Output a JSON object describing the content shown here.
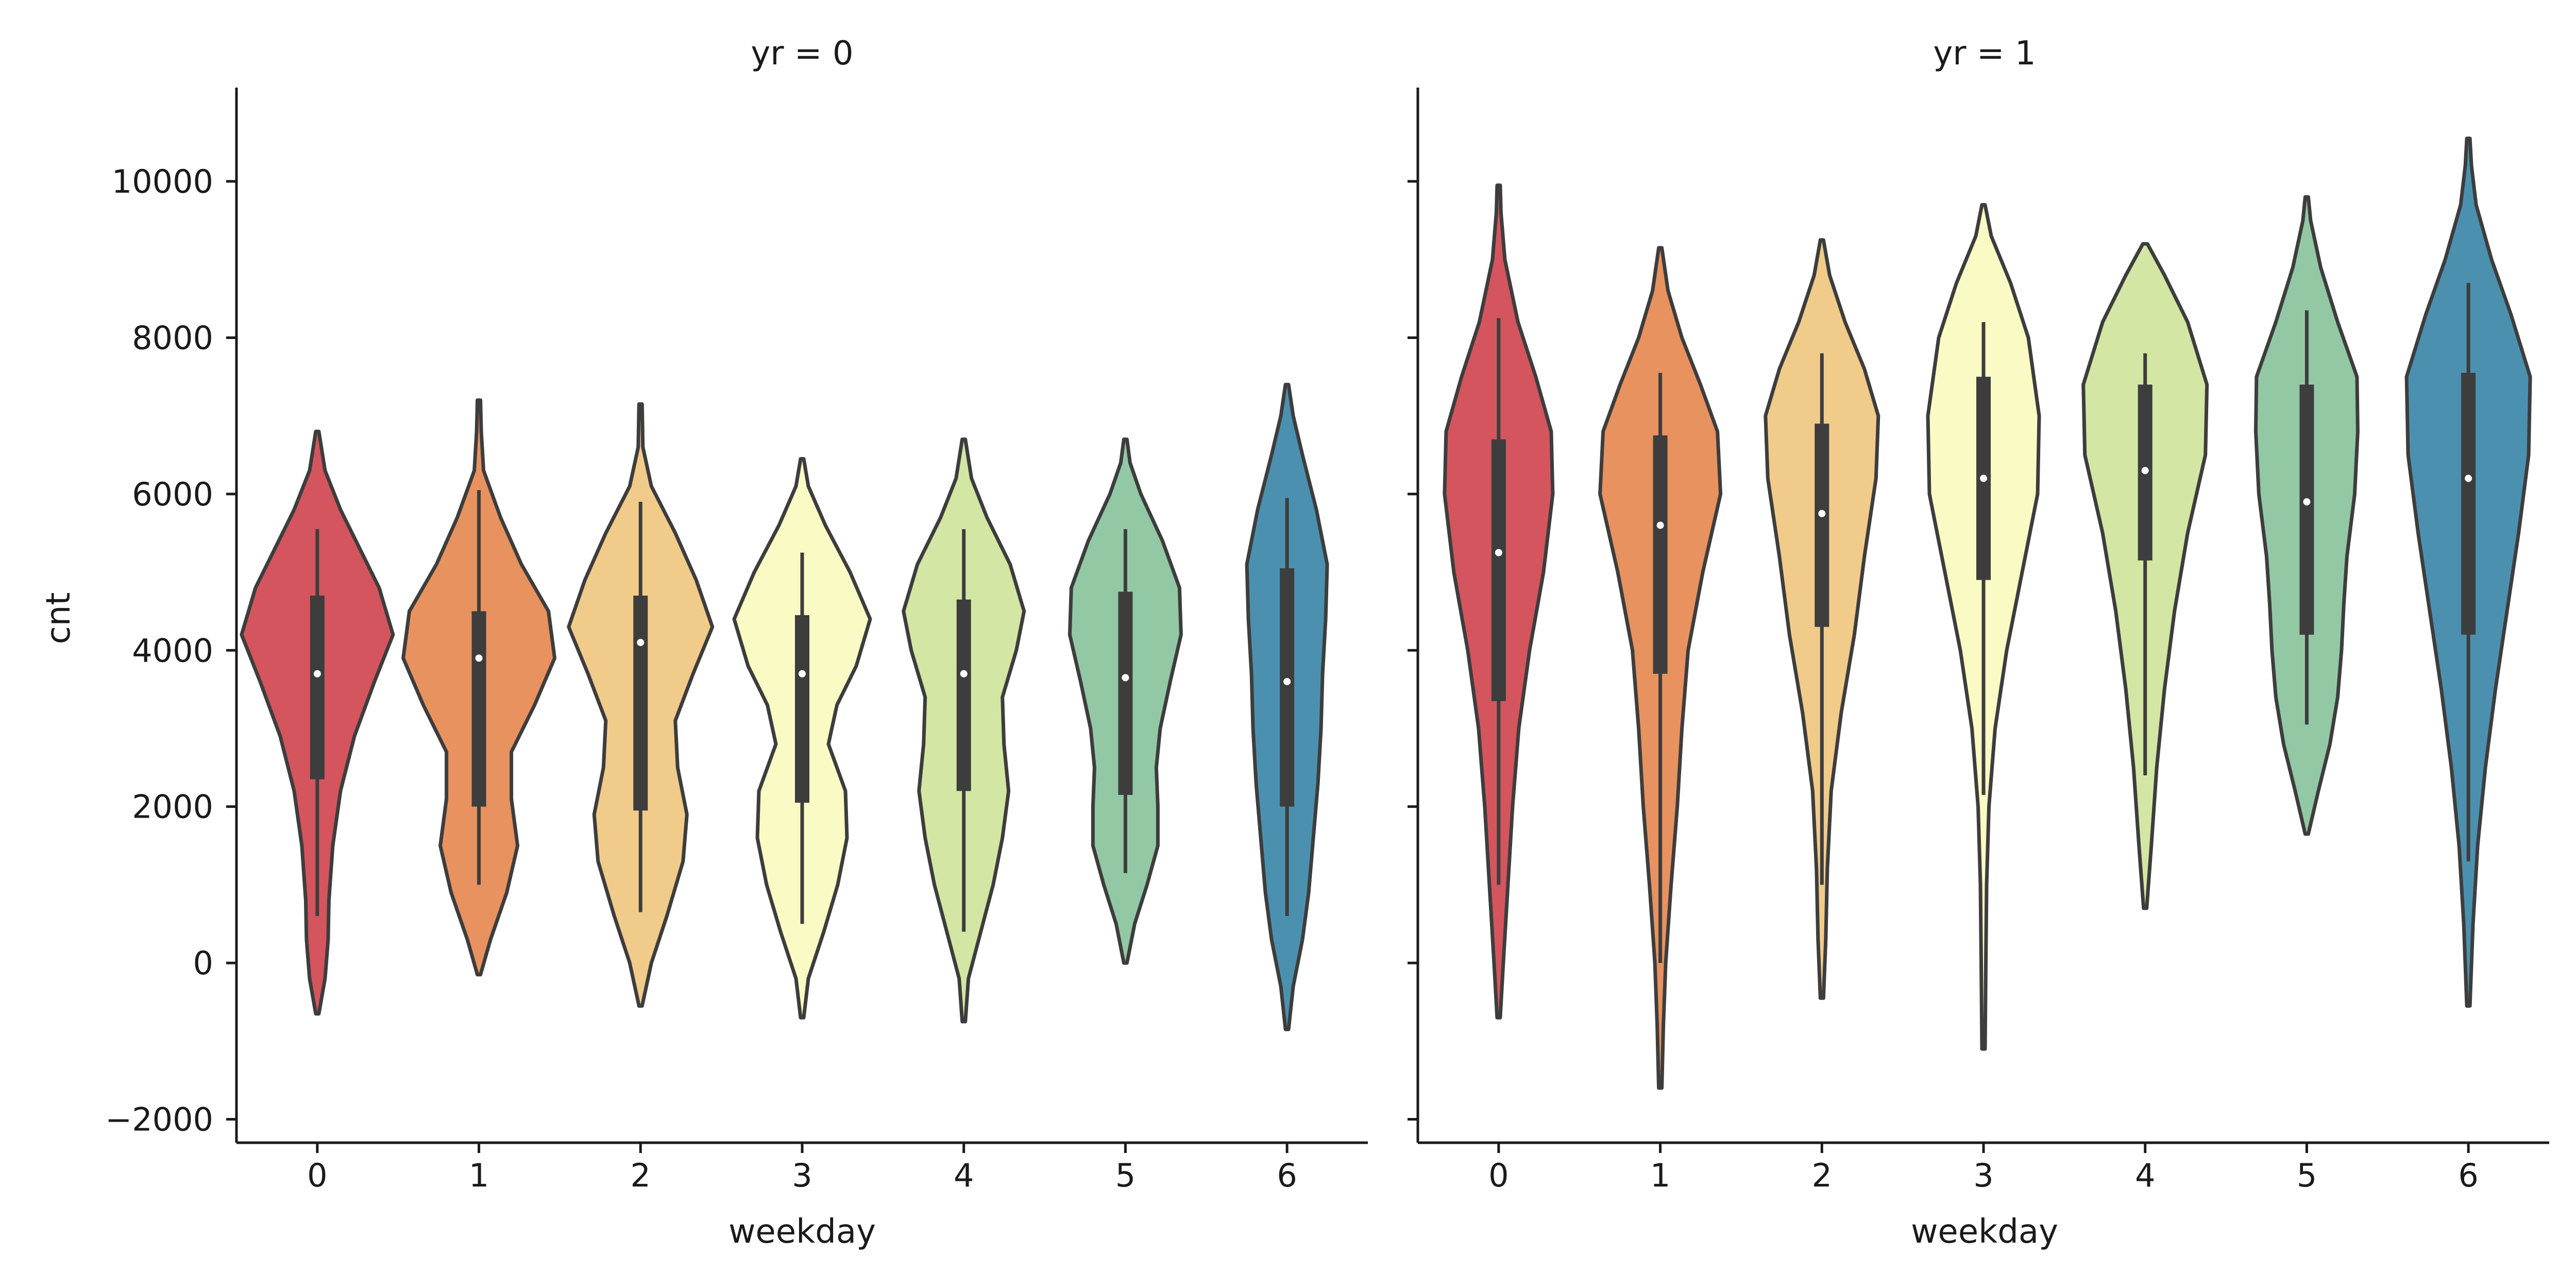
{
  "chart_data": {
    "type": "violin",
    "ylabel": "cnt",
    "ylim": [
      -2300,
      11200
    ],
    "yticks": [
      -2000,
      0,
      2000,
      4000,
      6000,
      8000,
      10000
    ],
    "ytick_labels": [
      "−2000",
      "0",
      "2000",
      "4000",
      "6000",
      "8000",
      "10000"
    ],
    "palette": [
      "#d4555d",
      "#e8925f",
      "#f1cb8a",
      "#fafac4",
      "#d3e6a3",
      "#93c8a5",
      "#4b91af"
    ],
    "panels": [
      {
        "title": "yr = 0",
        "xlabel": "weekday",
        "categories": [
          "0",
          "1",
          "2",
          "3",
          "4",
          "5",
          "6"
        ],
        "violins": [
          {
            "category": "0",
            "median": 3700,
            "q1": 2350,
            "q3": 4700,
            "whisker_low": 600,
            "whisker_high": 5550,
            "min": -650,
            "max": 6800,
            "density": [
              [
                -650,
                0.02
              ],
              [
                -200,
                0.1
              ],
              [
                300,
                0.14
              ],
              [
                800,
                0.15
              ],
              [
                1500,
                0.2
              ],
              [
                2200,
                0.3
              ],
              [
                2900,
                0.48
              ],
              [
                3600,
                0.74
              ],
              [
                4200,
                0.98
              ],
              [
                4800,
                0.8
              ],
              [
                5300,
                0.55
              ],
              [
                5800,
                0.3
              ],
              [
                6300,
                0.1
              ],
              [
                6800,
                0.02
              ]
            ]
          },
          {
            "category": "1",
            "median": 3900,
            "q1": 2000,
            "q3": 4500,
            "whisker_low": 1000,
            "whisker_high": 6050,
            "min": -150,
            "max": 7200,
            "density": [
              [
                -150,
                0.02
              ],
              [
                300,
                0.15
              ],
              [
                900,
                0.36
              ],
              [
                1500,
                0.5
              ],
              [
                2100,
                0.42
              ],
              [
                2700,
                0.42
              ],
              [
                3300,
                0.72
              ],
              [
                3900,
                0.98
              ],
              [
                4500,
                0.9
              ],
              [
                5100,
                0.55
              ],
              [
                5700,
                0.28
              ],
              [
                6300,
                0.06
              ],
              [
                6800,
                0.03
              ],
              [
                7200,
                0.02
              ]
            ]
          },
          {
            "category": "2",
            "median": 4100,
            "q1": 1950,
            "q3": 4700,
            "whisker_low": 650,
            "whisker_high": 5900,
            "min": -550,
            "max": 7150,
            "density": [
              [
                -550,
                0.02
              ],
              [
                0,
                0.14
              ],
              [
                600,
                0.34
              ],
              [
                1300,
                0.55
              ],
              [
                1900,
                0.6
              ],
              [
                2500,
                0.48
              ],
              [
                3100,
                0.45
              ],
              [
                3700,
                0.68
              ],
              [
                4300,
                0.93
              ],
              [
                4900,
                0.72
              ],
              [
                5500,
                0.45
              ],
              [
                6100,
                0.14
              ],
              [
                6600,
                0.03
              ],
              [
                7150,
                0.02
              ]
            ]
          },
          {
            "category": "3",
            "median": 3700,
            "q1": 2050,
            "q3": 4450,
            "whisker_low": 500,
            "whisker_high": 5250,
            "min": -700,
            "max": 6450,
            "density": [
              [
                -700,
                0.02
              ],
              [
                -200,
                0.08
              ],
              [
                400,
                0.28
              ],
              [
                1000,
                0.46
              ],
              [
                1600,
                0.58
              ],
              [
                2200,
                0.56
              ],
              [
                2800,
                0.34
              ],
              [
                3300,
                0.45
              ],
              [
                3800,
                0.7
              ],
              [
                4400,
                0.88
              ],
              [
                5000,
                0.62
              ],
              [
                5600,
                0.3
              ],
              [
                6100,
                0.08
              ],
              [
                6450,
                0.02
              ]
            ]
          },
          {
            "category": "4",
            "median": 3700,
            "q1": 2200,
            "q3": 4650,
            "whisker_low": 400,
            "whisker_high": 5550,
            "min": -750,
            "max": 6700,
            "density": [
              [
                -750,
                0.02
              ],
              [
                -200,
                0.06
              ],
              [
                400,
                0.22
              ],
              [
                1000,
                0.38
              ],
              [
                1600,
                0.5
              ],
              [
                2200,
                0.58
              ],
              [
                2800,
                0.52
              ],
              [
                3400,
                0.5
              ],
              [
                4000,
                0.68
              ],
              [
                4500,
                0.78
              ],
              [
                5100,
                0.6
              ],
              [
                5700,
                0.3
              ],
              [
                6200,
                0.1
              ],
              [
                6700,
                0.02
              ]
            ]
          },
          {
            "category": "5",
            "median": 3650,
            "q1": 2150,
            "q3": 4750,
            "whisker_low": 1150,
            "whisker_high": 5550,
            "min": 0,
            "max": 6700,
            "density": [
              [
                0,
                0.02
              ],
              [
                500,
                0.12
              ],
              [
                1000,
                0.28
              ],
              [
                1500,
                0.42
              ],
              [
                2000,
                0.42
              ],
              [
                2500,
                0.4
              ],
              [
                3000,
                0.45
              ],
              [
                3600,
                0.58
              ],
              [
                4200,
                0.72
              ],
              [
                4800,
                0.7
              ],
              [
                5400,
                0.48
              ],
              [
                6000,
                0.2
              ],
              [
                6400,
                0.06
              ],
              [
                6700,
                0.02
              ]
            ]
          },
          {
            "category": "6",
            "median": 3600,
            "q1": 2000,
            "q3": 5050,
            "whisker_low": 600,
            "whisker_high": 5950,
            "min": -850,
            "max": 7400,
            "density": [
              [
                -850,
                0.02
              ],
              [
                -300,
                0.08
              ],
              [
                300,
                0.2
              ],
              [
                900,
                0.28
              ],
              [
                1600,
                0.34
              ],
              [
                2300,
                0.4
              ],
              [
                3000,
                0.44
              ],
              [
                3700,
                0.46
              ],
              [
                4400,
                0.5
              ],
              [
                5100,
                0.52
              ],
              [
                5800,
                0.38
              ],
              [
                6500,
                0.2
              ],
              [
                7000,
                0.08
              ],
              [
                7400,
                0.02
              ]
            ]
          }
        ]
      },
      {
        "title": "yr = 1",
        "xlabel": "weekday",
        "categories": [
          "0",
          "1",
          "2",
          "3",
          "4",
          "5",
          "6"
        ],
        "violins": [
          {
            "category": "0",
            "median": 5250,
            "q1": 3350,
            "q3": 6700,
            "whisker_low": 1000,
            "whisker_high": 8250,
            "min": -700,
            "max": 9950,
            "density": [
              [
                -700,
                0.02
              ],
              [
                0,
                0.06
              ],
              [
                1000,
                0.12
              ],
              [
                2000,
                0.18
              ],
              [
                3000,
                0.26
              ],
              [
                4000,
                0.4
              ],
              [
                5000,
                0.58
              ],
              [
                6000,
                0.7
              ],
              [
                6800,
                0.68
              ],
              [
                7500,
                0.48
              ],
              [
                8200,
                0.25
              ],
              [
                9000,
                0.08
              ],
              [
                9600,
                0.03
              ],
              [
                9950,
                0.02
              ]
            ]
          },
          {
            "category": "1",
            "median": 5600,
            "q1": 3700,
            "q3": 6750,
            "whisker_low": 0,
            "whisker_high": 7550,
            "min": -1600,
            "max": 9150,
            "density": [
              [
                -1600,
                0.02
              ],
              [
                -800,
                0.04
              ],
              [
                0,
                0.07
              ],
              [
                1000,
                0.14
              ],
              [
                2000,
                0.22
              ],
              [
                3000,
                0.28
              ],
              [
                4000,
                0.36
              ],
              [
                5000,
                0.55
              ],
              [
                6000,
                0.78
              ],
              [
                6800,
                0.74
              ],
              [
                7400,
                0.52
              ],
              [
                8000,
                0.28
              ],
              [
                8600,
                0.1
              ],
              [
                9150,
                0.02
              ]
            ]
          },
          {
            "category": "2",
            "median": 5750,
            "q1": 4300,
            "q3": 6900,
            "whisker_low": 1000,
            "whisker_high": 7800,
            "min": -450,
            "max": 9250,
            "density": [
              [
                -450,
                0.02
              ],
              [
                300,
                0.05
              ],
              [
                1200,
                0.07
              ],
              [
                2200,
                0.12
              ],
              [
                3200,
                0.25
              ],
              [
                4200,
                0.42
              ],
              [
                5200,
                0.55
              ],
              [
                6200,
                0.7
              ],
              [
                7000,
                0.73
              ],
              [
                7600,
                0.55
              ],
              [
                8200,
                0.3
              ],
              [
                8800,
                0.1
              ],
              [
                9250,
                0.02
              ]
            ]
          },
          {
            "category": "3",
            "median": 6200,
            "q1": 4900,
            "q3": 7500,
            "whisker_low": 2150,
            "whisker_high": 8200,
            "min": -1100,
            "max": 9700,
            "density": [
              [
                -1100,
                0.02
              ],
              [
                0,
                0.03
              ],
              [
                1000,
                0.04
              ],
              [
                2000,
                0.07
              ],
              [
                3000,
                0.15
              ],
              [
                4000,
                0.3
              ],
              [
                5000,
                0.5
              ],
              [
                6000,
                0.7
              ],
              [
                7000,
                0.72
              ],
              [
                8000,
                0.58
              ],
              [
                8700,
                0.35
              ],
              [
                9300,
                0.1
              ],
              [
                9700,
                0.02
              ]
            ]
          },
          {
            "category": "4",
            "median": 6300,
            "q1": 5150,
            "q3": 7400,
            "whisker_low": 2400,
            "whisker_high": 7800,
            "min": 700,
            "max": 9200,
            "density": [
              [
                700,
                0.02
              ],
              [
                1500,
                0.08
              ],
              [
                2500,
                0.15
              ],
              [
                3500,
                0.25
              ],
              [
                4500,
                0.38
              ],
              [
                5500,
                0.55
              ],
              [
                6500,
                0.78
              ],
              [
                7400,
                0.8
              ],
              [
                8200,
                0.55
              ],
              [
                8800,
                0.25
              ],
              [
                9200,
                0.03
              ]
            ]
          },
          {
            "category": "5",
            "median": 5900,
            "q1": 4200,
            "q3": 7400,
            "whisker_low": 3050,
            "whisker_high": 8350,
            "min": 1650,
            "max": 9800,
            "density": [
              [
                1650,
                0.02
              ],
              [
                2200,
                0.15
              ],
              [
                2800,
                0.3
              ],
              [
                3400,
                0.4
              ],
              [
                4000,
                0.45
              ],
              [
                4600,
                0.48
              ],
              [
                5200,
                0.52
              ],
              [
                6000,
                0.62
              ],
              [
                6800,
                0.66
              ],
              [
                7500,
                0.65
              ],
              [
                8200,
                0.4
              ],
              [
                8900,
                0.18
              ],
              [
                9500,
                0.05
              ],
              [
                9800,
                0.02
              ]
            ]
          },
          {
            "category": "6",
            "median": 6200,
            "q1": 4200,
            "q3": 7550,
            "whisker_low": 1300,
            "whisker_high": 8700,
            "min": -550,
            "max": 10550,
            "density": [
              [
                -550,
                0.02
              ],
              [
                500,
                0.06
              ],
              [
                1500,
                0.12
              ],
              [
                2500,
                0.22
              ],
              [
                3500,
                0.35
              ],
              [
                4500,
                0.5
              ],
              [
                5500,
                0.65
              ],
              [
                6500,
                0.78
              ],
              [
                7500,
                0.8
              ],
              [
                8300,
                0.55
              ],
              [
                9000,
                0.3
              ],
              [
                9700,
                0.1
              ],
              [
                10200,
                0.04
              ],
              [
                10550,
                0.02
              ]
            ]
          }
        ]
      }
    ]
  }
}
